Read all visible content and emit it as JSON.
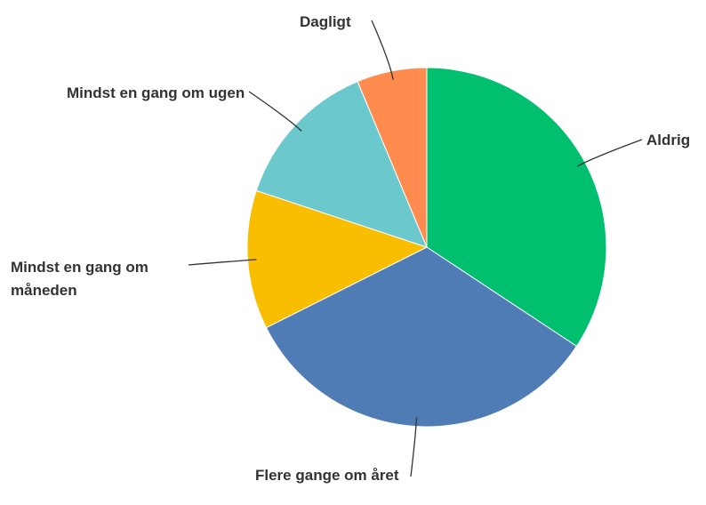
{
  "chart_data": {
    "type": "pie",
    "categories": [
      "Aldrig",
      "Flere gange om året",
      "Mindst en gang om måneden",
      "Mindst en gang om ugen",
      "Dagligt"
    ],
    "values": [
      34.3,
      33.3,
      12.5,
      13.6,
      6.3
    ],
    "colors": [
      "#00bf6f",
      "#507cb6",
      "#f9be00",
      "#6bc8cd",
      "#ff8b4f"
    ]
  }
}
